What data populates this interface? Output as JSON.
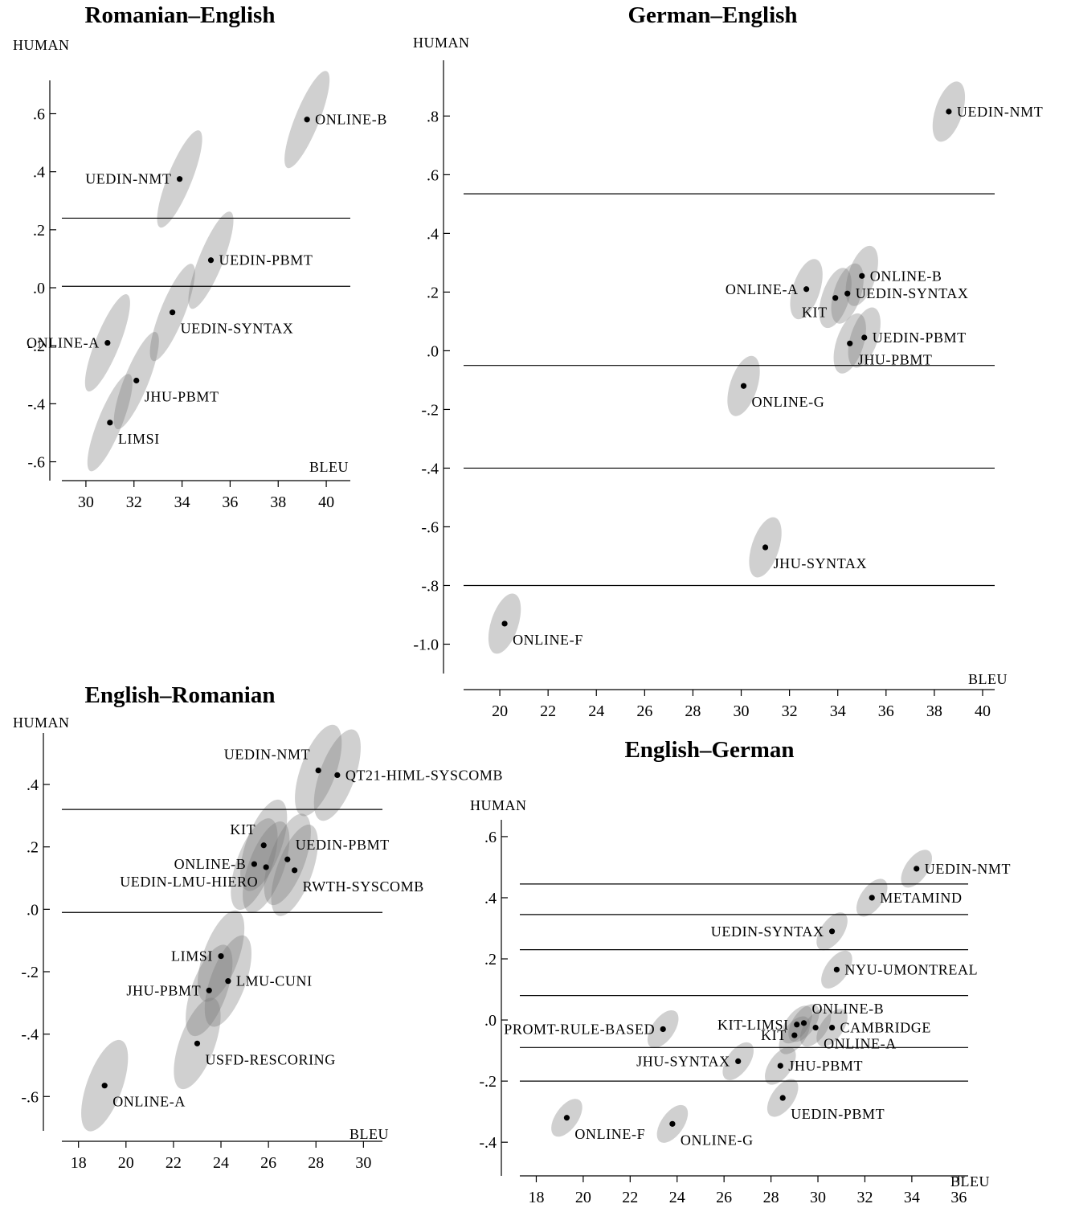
{
  "chart_data": [
    {
      "type": "scatter",
      "title": "Romanian–English",
      "xlabel": "BLEU",
      "ylabel": "HUMAN",
      "xlim": [
        29,
        41
      ],
      "ylim": [
        -0.665,
        0.715
      ],
      "xticks": [
        30,
        32,
        34,
        36,
        38,
        40
      ],
      "yticks": [
        -0.6,
        -0.4,
        -0.2,
        0.0,
        0.2,
        0.4,
        0.6
      ],
      "ytick_labels": [
        "-.6",
        "-.4",
        "-.2",
        ".0",
        ".2",
        ".4",
        ".6"
      ],
      "cluster_lines": [
        0.24,
        0.005
      ],
      "points": [
        {
          "name": "ONLINE-B",
          "x": 39.2,
          "y": 0.58,
          "label_pos": "right"
        },
        {
          "name": "UEDIN-NMT",
          "x": 33.9,
          "y": 0.375,
          "label_pos": "left"
        },
        {
          "name": "UEDIN-PBMT",
          "x": 35.2,
          "y": 0.095,
          "label_pos": "right"
        },
        {
          "name": "UEDIN-SYNTAX",
          "x": 33.6,
          "y": -0.085,
          "label_pos": "below-right"
        },
        {
          "name": "ONLINE-A",
          "x": 30.9,
          "y": -0.19,
          "label_pos": "left"
        },
        {
          "name": "JHU-PBMT",
          "x": 32.1,
          "y": -0.32,
          "label_pos": "below-right"
        },
        {
          "name": "LIMSI",
          "x": 31.0,
          "y": -0.465,
          "label_pos": "below-right"
        }
      ]
    },
    {
      "type": "scatter",
      "title": "German–English",
      "xlabel": "BLEU",
      "ylabel": "HUMAN",
      "xlim": [
        18.5,
        40.5
      ],
      "ylim": [
        -1.1,
        0.99
      ],
      "xticks": [
        20,
        22,
        24,
        26,
        28,
        30,
        32,
        34,
        36,
        38,
        40
      ],
      "yticks": [
        -1.0,
        -0.8,
        -0.6,
        -0.4,
        -0.2,
        0.0,
        0.2,
        0.4,
        0.6,
        0.8
      ],
      "ytick_labels": [
        "-1.0",
        "-.8",
        "-.6",
        "-.4",
        "-.2",
        ".0",
        ".2",
        ".4",
        ".6",
        ".8"
      ],
      "cluster_lines": [
        0.535,
        -0.05,
        -0.4,
        -0.8
      ],
      "points": [
        {
          "name": "UEDIN-NMT",
          "x": 38.6,
          "y": 0.815,
          "label_pos": "right"
        },
        {
          "name": "ONLINE-A",
          "x": 32.7,
          "y": 0.21,
          "label_pos": "left"
        },
        {
          "name": "ONLINE-B",
          "x": 35.0,
          "y": 0.255,
          "label_pos": "right"
        },
        {
          "name": "UEDIN-SYNTAX",
          "x": 34.4,
          "y": 0.195,
          "label_pos": "right"
        },
        {
          "name": "KIT",
          "x": 33.9,
          "y": 0.18,
          "label_pos": "below-left"
        },
        {
          "name": "UEDIN-PBMT",
          "x": 35.1,
          "y": 0.045,
          "label_pos": "right"
        },
        {
          "name": "JHU-PBMT",
          "x": 34.5,
          "y": 0.025,
          "label_pos": "below-right"
        },
        {
          "name": "ONLINE-G",
          "x": 30.1,
          "y": -0.12,
          "label_pos": "below-right"
        },
        {
          "name": "JHU-SYNTAX",
          "x": 31.0,
          "y": -0.67,
          "label_pos": "below-right"
        },
        {
          "name": "ONLINE-F",
          "x": 20.2,
          "y": -0.93,
          "label_pos": "below-right"
        }
      ]
    },
    {
      "type": "scatter",
      "title": "English–Romanian",
      "xlabel": "BLEU",
      "ylabel": "HUMAN",
      "xlim": [
        17.3,
        30.8
      ],
      "ylim": [
        -0.71,
        0.565
      ],
      "xticks": [
        18,
        20,
        22,
        24,
        26,
        28,
        30
      ],
      "yticks": [
        -0.6,
        -0.4,
        -0.2,
        0.0,
        0.2,
        0.4
      ],
      "ytick_labels": [
        "-.6",
        "-.4",
        "-.2",
        ".0",
        ".2",
        ".4"
      ],
      "cluster_lines": [
        0.32,
        -0.01
      ],
      "points": [
        {
          "name": "UEDIN-NMT",
          "x": 28.1,
          "y": 0.445,
          "label_pos": "above-left"
        },
        {
          "name": "QT21-HIML-SYSCOMB",
          "x": 28.9,
          "y": 0.43,
          "label_pos": "right"
        },
        {
          "name": "KIT",
          "x": 25.8,
          "y": 0.205,
          "label_pos": "above-left"
        },
        {
          "name": "UEDIN-PBMT",
          "x": 26.8,
          "y": 0.16,
          "label_pos": "above-right"
        },
        {
          "name": "ONLINE-B",
          "x": 25.4,
          "y": 0.145,
          "label_pos": "left"
        },
        {
          "name": "UEDIN-LMU-HIERO",
          "x": 25.9,
          "y": 0.135,
          "label_pos": "below-left"
        },
        {
          "name": "RWTH-SYSCOMB",
          "x": 27.1,
          "y": 0.125,
          "label_pos": "below-right"
        },
        {
          "name": "LIMSI",
          "x": 24.0,
          "y": -0.15,
          "label_pos": "left"
        },
        {
          "name": "LMU-CUNI",
          "x": 24.3,
          "y": -0.23,
          "label_pos": "right"
        },
        {
          "name": "JHU-PBMT",
          "x": 23.5,
          "y": -0.26,
          "label_pos": "left"
        },
        {
          "name": "USFD-RESCORING",
          "x": 23.0,
          "y": -0.43,
          "label_pos": "below-right"
        },
        {
          "name": "ONLINE-A",
          "x": 19.1,
          "y": -0.565,
          "label_pos": "below-right"
        }
      ]
    },
    {
      "type": "scatter",
      "title": "English–German",
      "xlabel": "BLEU",
      "ylabel": "HUMAN",
      "xlim": [
        17.3,
        36.4
      ],
      "ylim": [
        -0.51,
        0.655
      ],
      "xticks": [
        18,
        20,
        22,
        24,
        26,
        28,
        30,
        32,
        34,
        36
      ],
      "yticks": [
        -0.4,
        -0.2,
        0.0,
        0.2,
        0.4,
        0.6
      ],
      "ytick_labels": [
        "-.4",
        "-.2",
        ".0",
        ".2",
        ".4",
        ".6"
      ],
      "cluster_lines": [
        0.445,
        0.345,
        0.23,
        0.08,
        -0.09,
        -0.2
      ],
      "points": [
        {
          "name": "UEDIN-NMT",
          "x": 34.2,
          "y": 0.495,
          "label_pos": "right"
        },
        {
          "name": "METAMIND",
          "x": 32.3,
          "y": 0.4,
          "label_pos": "right"
        },
        {
          "name": "UEDIN-SYNTAX",
          "x": 30.6,
          "y": 0.29,
          "label_pos": "left"
        },
        {
          "name": "NYU-UMONTREAL",
          "x": 30.8,
          "y": 0.165,
          "label_pos": "right"
        },
        {
          "name": "ONLINE-B",
          "x": 29.4,
          "y": -0.01,
          "label_pos": "above-right"
        },
        {
          "name": "KIT-LIMSI",
          "x": 29.1,
          "y": -0.015,
          "label_pos": "left"
        },
        {
          "name": "CAMBRIDGE",
          "x": 30.6,
          "y": -0.025,
          "label_pos": "right"
        },
        {
          "name": "KIT",
          "x": 29.0,
          "y": -0.05,
          "label_pos": "left"
        },
        {
          "name": "ONLINE-A",
          "x": 29.9,
          "y": -0.025,
          "label_pos": "below-right"
        },
        {
          "name": "PROMT-RULE-BASED",
          "x": 23.4,
          "y": -0.03,
          "label_pos": "left"
        },
        {
          "name": "JHU-SYNTAX",
          "x": 26.6,
          "y": -0.135,
          "label_pos": "left"
        },
        {
          "name": "JHU-PBMT",
          "x": 28.4,
          "y": -0.15,
          "label_pos": "right"
        },
        {
          "name": "UEDIN-PBMT",
          "x": 28.5,
          "y": -0.255,
          "label_pos": "below-right"
        },
        {
          "name": "ONLINE-F",
          "x": 19.3,
          "y": -0.32,
          "label_pos": "below-right"
        },
        {
          "name": "ONLINE-G",
          "x": 23.8,
          "y": -0.34,
          "label_pos": "below-right"
        }
      ]
    }
  ]
}
